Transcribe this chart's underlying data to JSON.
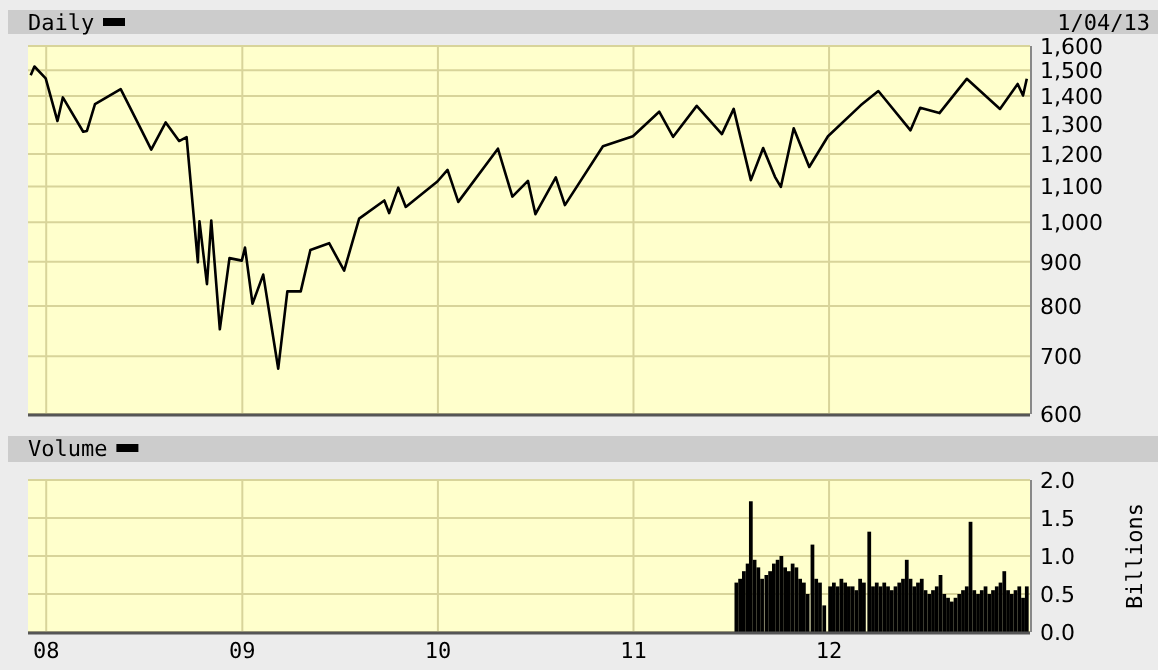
{
  "chart_data": [
    {
      "type": "line",
      "log": true,
      "grid": true,
      "legend": "top left",
      "tick_labels": "y",
      "annotations": [
        "1/04/13"
      ],
      "xlim": [
        "2007-11-28",
        "2013-01-10"
      ],
      "ylim": [
        600,
        1600
      ],
      "xticks": [
        {
          "value": "2008-01-01",
          "label": null
        },
        {
          "value": "2009-01-01",
          "label": null
        },
        {
          "value": "2010-01-01",
          "label": null
        },
        {
          "value": "2011-01-01",
          "label": null
        },
        {
          "value": "2012-01-01",
          "label": null
        }
      ],
      "yticks": [
        600,
        700,
        800,
        900,
        {
          "value": 1000,
          "label": "1,000"
        },
        {
          "value": 1100,
          "label": "1,100"
        },
        {
          "value": 1200,
          "label": "1,200"
        },
        {
          "value": 1300,
          "label": "1,300"
        },
        {
          "value": 1400,
          "label": "1,400"
        },
        {
          "value": 1500,
          "label": "1,500"
        },
        {
          "value": 1600,
          "label": "1,600"
        }
      ],
      "series": [
        {
          "name": "Daily",
          "color": "#000000",
          "x": [
            "2007-12-03",
            "2007-12-10",
            "2007-12-31",
            "2008-01-22",
            "2008-02-01",
            "2008-03-10",
            "2008-03-17",
            "2008-04-01",
            "2008-05-19",
            "2008-06-27",
            "2008-07-15",
            "2008-08-11",
            "2008-09-05",
            "2008-09-19",
            "2008-10-10",
            "2008-10-13",
            "2008-10-27",
            "2008-11-04",
            "2008-11-20",
            "2008-12-08",
            "2008-12-31",
            "2009-01-06",
            "2009-01-20",
            "2009-02-09",
            "2009-03-09",
            "2009-03-26",
            "2009-04-20",
            "2009-05-08",
            "2009-06-12",
            "2009-07-10",
            "2009-08-07",
            "2009-09-23",
            "2009-10-02",
            "2009-10-19",
            "2009-11-02",
            "2009-12-31",
            "2010-01-19",
            "2010-02-08",
            "2010-04-23",
            "2010-05-20",
            "2010-06-18",
            "2010-07-02",
            "2010-08-09",
            "2010-08-26",
            "2010-11-05",
            "2010-12-31",
            "2011-02-18",
            "2011-03-16",
            "2011-04-29",
            "2011-06-15",
            "2011-07-07",
            "2011-08-08",
            "2011-08-31",
            "2011-09-22",
            "2011-10-03",
            "2011-10-27",
            "2011-11-25",
            "2011-12-30",
            "2012-02-29",
            "2012-04-02",
            "2012-06-01",
            "2012-06-19",
            "2012-07-25",
            "2012-09-14",
            "2012-11-15",
            "2012-12-18",
            "2012-12-28",
            "2013-01-04"
          ],
          "values": [
            1480,
            1515,
            1468,
            1310,
            1395,
            1273,
            1276,
            1370,
            1426,
            1278,
            1214,
            1305,
            1242,
            1255,
            899,
            1003,
            848,
            1005,
            752,
            909,
            903,
            935,
            805,
            870,
            677,
            832,
            832,
            929,
            946,
            879,
            1010,
            1060,
            1025,
            1097,
            1042,
            1115,
            1150,
            1056,
            1217,
            1071,
            1117,
            1022,
            1127,
            1047,
            1225,
            1258,
            1343,
            1256,
            1364,
            1265,
            1353,
            1119,
            1219,
            1129,
            1099,
            1285,
            1159,
            1258,
            1366,
            1419,
            1278,
            1357,
            1338,
            1466,
            1353,
            1446,
            1402,
            1466
          ]
        }
      ]
    },
    {
      "type": "bar",
      "grid": true,
      "legend": "top left",
      "ylabel": "Billions",
      "xlim": [
        "2007-11-28",
        "2013-01-10"
      ],
      "ylim": [
        0,
        2
      ],
      "xticks": [
        {
          "value": "2008-01-01",
          "label": "08"
        },
        {
          "value": "2009-01-01",
          "label": "09"
        },
        {
          "value": "2010-01-01",
          "label": "10"
        },
        {
          "value": "2011-01-01",
          "label": "11"
        },
        {
          "value": "2012-01-01",
          "label": "12"
        }
      ],
      "yticks": [
        {
          "value": 0,
          "label": "0.0"
        },
        {
          "value": 0.5,
          "label": "0.5"
        },
        {
          "value": 1,
          "label": "1.0"
        },
        {
          "value": 1.5,
          "label": "1.5"
        },
        {
          "value": 2,
          "label": "2.0"
        }
      ],
      "series": [
        {
          "name": "Volume",
          "color": "#000000",
          "x": [
            "2011-07-12",
            "2011-07-19",
            "2011-07-26",
            "2011-08-02",
            "2011-08-08",
            "2011-08-15",
            "2011-08-22",
            "2011-08-29",
            "2011-09-06",
            "2011-09-13",
            "2011-09-20",
            "2011-09-27",
            "2011-10-04",
            "2011-10-11",
            "2011-10-18",
            "2011-10-25",
            "2011-11-01",
            "2011-11-08",
            "2011-11-15",
            "2011-11-22",
            "2011-12-01",
            "2011-12-08",
            "2011-12-15",
            "2011-12-23",
            "2012-01-03",
            "2012-01-10",
            "2012-01-17",
            "2012-01-24",
            "2012-01-31",
            "2012-02-07",
            "2012-02-14",
            "2012-02-21",
            "2012-02-28",
            "2012-03-06",
            "2012-03-16",
            "2012-03-23",
            "2012-03-30",
            "2012-04-06",
            "2012-04-13",
            "2012-04-20",
            "2012-04-27",
            "2012-05-04",
            "2012-05-11",
            "2012-05-18",
            "2012-05-25",
            "2012-06-01",
            "2012-06-08",
            "2012-06-15",
            "2012-06-22",
            "2012-06-29",
            "2012-07-06",
            "2012-07-13",
            "2012-07-20",
            "2012-07-27",
            "2012-08-03",
            "2012-08-10",
            "2012-08-17",
            "2012-08-24",
            "2012-08-31",
            "2012-09-07",
            "2012-09-14",
            "2012-09-21",
            "2012-09-28",
            "2012-10-05",
            "2012-10-12",
            "2012-10-19",
            "2012-10-26",
            "2012-11-02",
            "2012-11-09",
            "2012-11-16",
            "2012-11-23",
            "2012-11-30",
            "2012-12-07",
            "2012-12-14",
            "2012-12-21",
            "2012-12-28",
            "2013-01-04"
          ],
          "values": [
            0.65,
            0.7,
            0.8,
            0.9,
            1.72,
            0.95,
            0.85,
            0.7,
            0.75,
            0.8,
            0.9,
            0.95,
            1.0,
            0.85,
            0.8,
            0.9,
            0.85,
            0.7,
            0.65,
            0.5,
            1.15,
            0.7,
            0.65,
            0.35,
            0.6,
            0.65,
            0.6,
            0.7,
            0.65,
            0.6,
            0.6,
            0.55,
            0.7,
            0.65,
            1.32,
            0.6,
            0.65,
            0.6,
            0.65,
            0.6,
            0.55,
            0.6,
            0.65,
            0.7,
            0.95,
            0.7,
            0.6,
            0.65,
            0.7,
            0.55,
            0.5,
            0.55,
            0.6,
            0.75,
            0.5,
            0.45,
            0.4,
            0.45,
            0.5,
            0.55,
            0.6,
            1.45,
            0.55,
            0.5,
            0.55,
            0.6,
            0.5,
            0.55,
            0.6,
            0.65,
            0.8,
            0.55,
            0.5,
            0.55,
            0.6,
            0.45,
            0.6
          ]
        }
      ]
    }
  ]
}
